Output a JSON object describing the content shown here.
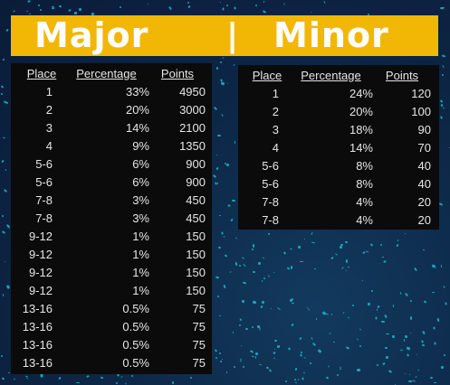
{
  "banner": {
    "left_title": "Major",
    "separator": "|",
    "right_title": "Minor",
    "color": "#f2b705"
  },
  "major": {
    "headers": [
      "Place",
      "Percentage",
      "Points"
    ],
    "rows": [
      [
        "1",
        "33%",
        "4950"
      ],
      [
        "2",
        "20%",
        "3000"
      ],
      [
        "3",
        "14%",
        "2100"
      ],
      [
        "4",
        "9%",
        "1350"
      ],
      [
        "5-6",
        "6%",
        "900"
      ],
      [
        "5-6",
        "6%",
        "900"
      ],
      [
        "7-8",
        "3%",
        "450"
      ],
      [
        "7-8",
        "3%",
        "450"
      ],
      [
        "9-12",
        "1%",
        "150"
      ],
      [
        "9-12",
        "1%",
        "150"
      ],
      [
        "9-12",
        "1%",
        "150"
      ],
      [
        "9-12",
        "1%",
        "150"
      ],
      [
        "13-16",
        "0.5%",
        "75"
      ],
      [
        "13-16",
        "0.5%",
        "75"
      ],
      [
        "13-16",
        "0.5%",
        "75"
      ],
      [
        "13-16",
        "0.5%",
        "75"
      ]
    ]
  },
  "minor": {
    "headers": [
      "Place",
      "Percentage",
      "Points"
    ],
    "rows": [
      [
        "1",
        "24%",
        "120"
      ],
      [
        "2",
        "20%",
        "100"
      ],
      [
        "3",
        "18%",
        "90"
      ],
      [
        "4",
        "14%",
        "70"
      ],
      [
        "5-6",
        "8%",
        "40"
      ],
      [
        "5-6",
        "8%",
        "40"
      ],
      [
        "7-8",
        "4%",
        "20"
      ],
      [
        "7-8",
        "4%",
        "20"
      ]
    ]
  }
}
